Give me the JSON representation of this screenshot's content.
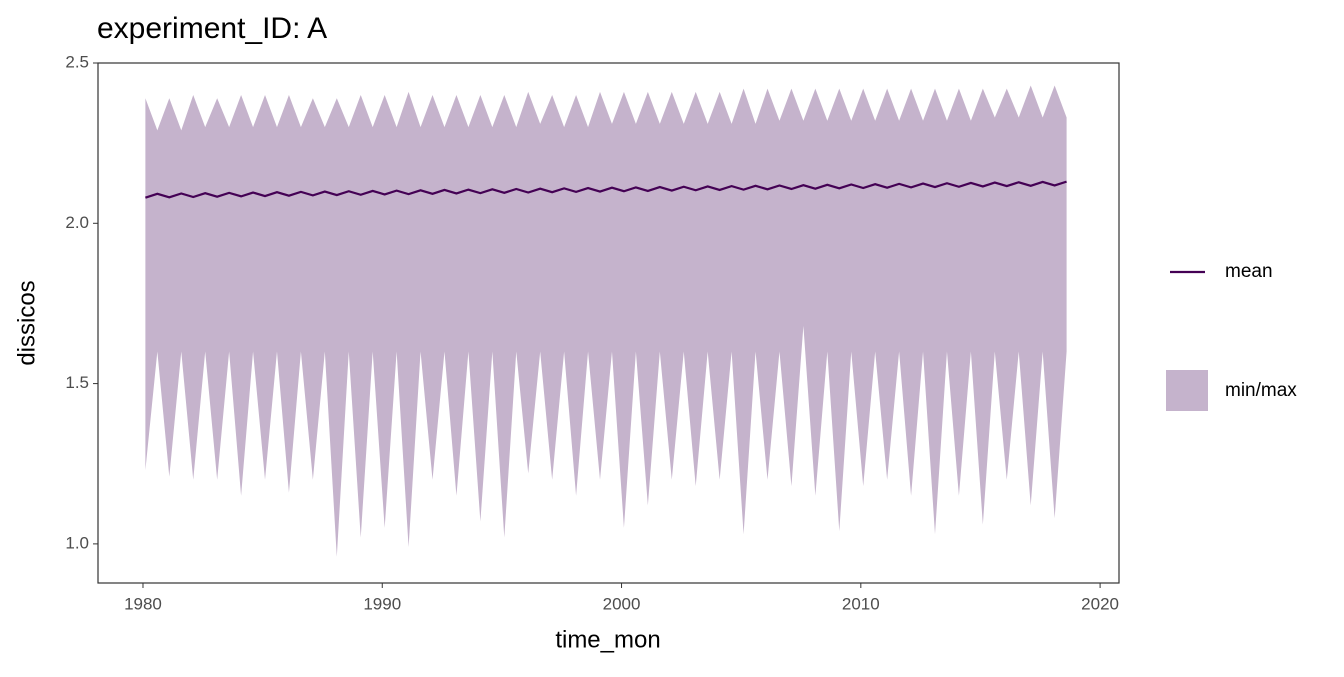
{
  "chart_data": {
    "type": "ribbon",
    "title": "experiment_ID: A",
    "x_label": "time_mon",
    "y_label": "dissicos",
    "x": [
      1980.1,
      1980.6,
      1981.1,
      1981.6,
      1982.1,
      1982.6,
      1983.1,
      1983.6,
      1984.1,
      1984.6,
      1985.1,
      1985.6,
      1986.1,
      1986.6,
      1987.1,
      1987.6,
      1988.1,
      1988.6,
      1989.1,
      1989.6,
      1990.1,
      1990.6,
      1991.1,
      1991.6,
      1992.1,
      1992.6,
      1993.1,
      1993.6,
      1994.1,
      1994.6,
      1995.1,
      1995.6,
      1996.1,
      1996.6,
      1997.1,
      1997.6,
      1998.1,
      1998.6,
      1999.1,
      1999.6,
      2000.1,
      2000.6,
      2001.1,
      2001.6,
      2002.1,
      2002.6,
      2003.1,
      2003.6,
      2004.1,
      2004.6,
      2005.1,
      2005.6,
      2006.1,
      2006.6,
      2007.1,
      2007.6,
      2008.1,
      2008.6,
      2009.1,
      2009.6,
      2010.1,
      2010.6,
      2011.1,
      2011.6,
      2012.1,
      2012.6,
      2013.1,
      2013.6,
      2014.1,
      2014.6,
      2015.1,
      2015.6,
      2016.1,
      2016.6,
      2017.1,
      2017.6,
      2018.1,
      2018.6
    ],
    "series": [
      {
        "name": "mean",
        "color": "#440154",
        "values": [
          2.08,
          2.092,
          2.081,
          2.093,
          2.082,
          2.094,
          2.083,
          2.095,
          2.084,
          2.096,
          2.085,
          2.097,
          2.086,
          2.098,
          2.087,
          2.099,
          2.088,
          2.1,
          2.089,
          2.101,
          2.09,
          2.102,
          2.091,
          2.103,
          2.092,
          2.104,
          2.093,
          2.105,
          2.094,
          2.106,
          2.095,
          2.107,
          2.096,
          2.108,
          2.097,
          2.109,
          2.098,
          2.11,
          2.099,
          2.111,
          2.1,
          2.112,
          2.101,
          2.113,
          2.102,
          2.114,
          2.103,
          2.115,
          2.104,
          2.116,
          2.105,
          2.117,
          2.106,
          2.118,
          2.107,
          2.119,
          2.108,
          2.12,
          2.109,
          2.121,
          2.11,
          2.122,
          2.111,
          2.123,
          2.112,
          2.124,
          2.113,
          2.125,
          2.114,
          2.126,
          2.115,
          2.127,
          2.116,
          2.128,
          2.117,
          2.129,
          2.118,
          2.13
        ]
      },
      {
        "name": "min/max",
        "color": "#c5b3cc",
        "low": [
          1.23,
          1.6,
          1.21,
          1.6,
          1.2,
          1.6,
          1.2,
          1.6,
          1.15,
          1.6,
          1.2,
          1.6,
          1.16,
          1.6,
          1.2,
          1.6,
          0.96,
          1.6,
          1.02,
          1.6,
          1.05,
          1.6,
          0.99,
          1.6,
          1.2,
          1.6,
          1.15,
          1.6,
          1.07,
          1.6,
          1.02,
          1.6,
          1.22,
          1.6,
          1.2,
          1.6,
          1.15,
          1.6,
          1.2,
          1.6,
          1.05,
          1.6,
          1.12,
          1.6,
          1.2,
          1.6,
          1.18,
          1.6,
          1.2,
          1.6,
          1.03,
          1.6,
          1.2,
          1.6,
          1.18,
          1.68,
          1.15,
          1.6,
          1.04,
          1.6,
          1.18,
          1.6,
          1.2,
          1.6,
          1.15,
          1.6,
          1.03,
          1.6,
          1.15,
          1.6,
          1.06,
          1.6,
          1.2,
          1.6,
          1.12,
          1.6,
          1.08,
          1.6
        ],
        "high": [
          2.39,
          2.29,
          2.39,
          2.29,
          2.4,
          2.3,
          2.39,
          2.3,
          2.4,
          2.3,
          2.4,
          2.3,
          2.4,
          2.3,
          2.39,
          2.3,
          2.39,
          2.3,
          2.4,
          2.3,
          2.4,
          2.3,
          2.41,
          2.3,
          2.4,
          2.3,
          2.4,
          2.3,
          2.4,
          2.3,
          2.4,
          2.3,
          2.41,
          2.31,
          2.4,
          2.3,
          2.4,
          2.3,
          2.41,
          2.31,
          2.41,
          2.31,
          2.41,
          2.31,
          2.41,
          2.31,
          2.41,
          2.31,
          2.41,
          2.31,
          2.42,
          2.31,
          2.42,
          2.32,
          2.42,
          2.32,
          2.42,
          2.32,
          2.42,
          2.32,
          2.42,
          2.32,
          2.42,
          2.32,
          2.42,
          2.32,
          2.42,
          2.32,
          2.42,
          2.32,
          2.42,
          2.33,
          2.42,
          2.33,
          2.43,
          2.33,
          2.43,
          2.33
        ]
      }
    ],
    "xlim": [
      1978.12,
      2020.79
    ],
    "xticks": [
      1980,
      1990,
      2000,
      2010,
      2020
    ],
    "ylim": [
      0.878,
      2.5
    ],
    "yticks": [
      {
        "value": 1.0,
        "label": "1.0"
      },
      1.5,
      {
        "value": 2.0,
        "label": "2.0"
      },
      2.5
    ]
  }
}
